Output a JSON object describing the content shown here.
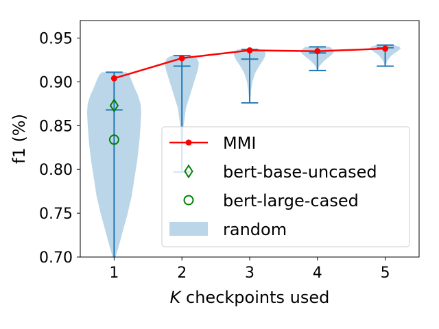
{
  "chart_data": {
    "type": "violin",
    "title": "",
    "xlabel_italic": "K",
    "xlabel_rest": " checkpoints used",
    "ylabel": "f1 (%)",
    "xlim": [
      0.5,
      5.5
    ],
    "ylim": [
      0.7,
      0.97
    ],
    "xticks": [
      1,
      2,
      3,
      4,
      5
    ],
    "xtick_labels": [
      "1",
      "2",
      "3",
      "4",
      "5"
    ],
    "yticks": [
      0.7,
      0.75,
      0.8,
      0.85,
      0.9,
      0.95
    ],
    "ytick_labels": [
      "0.70",
      "0.75",
      "0.80",
      "0.85",
      "0.90",
      "0.95"
    ],
    "grid": false,
    "legend_position": "center-right",
    "series": [
      {
        "name": "MMI",
        "kind": "line",
        "color": "#ff0000",
        "x": [
          1,
          2,
          3,
          4,
          5
        ],
        "values": [
          0.904,
          0.927,
          0.936,
          0.935,
          0.938
        ]
      },
      {
        "name": "bert-base-uncased",
        "kind": "scatter",
        "marker": "thin-diamond",
        "color": "#008000",
        "x": [
          1
        ],
        "values": [
          0.873
        ]
      },
      {
        "name": "bert-large-cased",
        "kind": "scatter",
        "marker": "circle",
        "color": "#008000",
        "x": [
          1
        ],
        "values": [
          0.834
        ]
      },
      {
        "name": "random",
        "kind": "violin",
        "color": "#1f77b4",
        "fill_alpha": 0.3,
        "violins": [
          {
            "x": 1,
            "min": 0.697,
            "max": 0.911,
            "median": 0.868,
            "profile": [
              [
                0.697,
                0.01
              ],
              [
                0.71,
                0.06
              ],
              [
                0.73,
                0.13
              ],
              [
                0.75,
                0.2
              ],
              [
                0.77,
                0.26
              ],
              [
                0.79,
                0.3
              ],
              [
                0.81,
                0.34
              ],
              [
                0.83,
                0.37
              ],
              [
                0.85,
                0.39
              ],
              [
                0.865,
                0.4
              ],
              [
                0.875,
                0.39
              ],
              [
                0.885,
                0.35
              ],
              [
                0.895,
                0.29
              ],
              [
                0.903,
                0.25
              ],
              [
                0.908,
                0.22
              ],
              [
                0.911,
                0.18
              ]
            ]
          },
          {
            "x": 2,
            "min": 0.797,
            "max": 0.93,
            "median": 0.918,
            "profile": [
              [
                0.797,
                0.005
              ],
              [
                0.81,
                0.01
              ],
              [
                0.83,
                0.015
              ],
              [
                0.85,
                0.025
              ],
              [
                0.87,
                0.06
              ],
              [
                0.89,
                0.14
              ],
              [
                0.905,
                0.2
              ],
              [
                0.915,
                0.24
              ],
              [
                0.922,
                0.25
              ],
              [
                0.927,
                0.22
              ],
              [
                0.93,
                0.15
              ]
            ]
          },
          {
            "x": 3,
            "min": 0.876,
            "max": 0.937,
            "median": 0.926,
            "profile": [
              [
                0.876,
                0.005
              ],
              [
                0.89,
                0.02
              ],
              [
                0.9,
                0.04
              ],
              [
                0.91,
                0.08
              ],
              [
                0.918,
                0.14
              ],
              [
                0.925,
                0.2
              ],
              [
                0.93,
                0.23
              ],
              [
                0.934,
                0.23
              ],
              [
                0.937,
                0.18
              ]
            ]
          },
          {
            "x": 4,
            "min": 0.913,
            "max": 0.94,
            "median": 0.933,
            "profile": [
              [
                0.913,
                0.005
              ],
              [
                0.918,
                0.03
              ],
              [
                0.924,
                0.1
              ],
              [
                0.929,
                0.18
              ],
              [
                0.933,
                0.24
              ],
              [
                0.936,
                0.24
              ],
              [
                0.94,
                0.18
              ]
            ]
          },
          {
            "x": 5,
            "min": 0.918,
            "max": 0.942,
            "median": 0.939,
            "profile": [
              [
                0.918,
                0.005
              ],
              [
                0.924,
                0.03
              ],
              [
                0.93,
                0.09
              ],
              [
                0.935,
                0.18
              ],
              [
                0.938,
                0.23
              ],
              [
                0.94,
                0.21
              ],
              [
                0.942,
                0.13
              ]
            ]
          }
        ]
      }
    ]
  }
}
